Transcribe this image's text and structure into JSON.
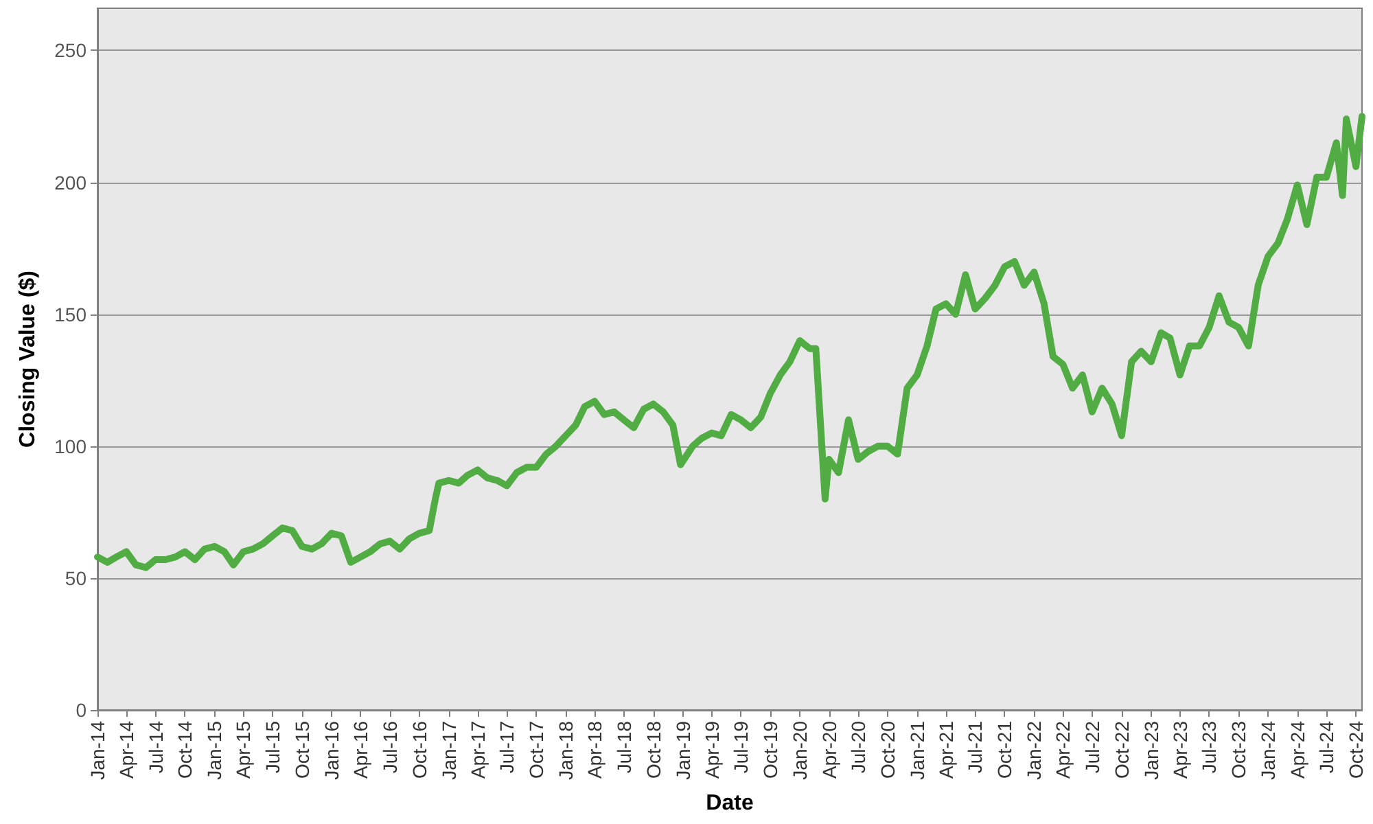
{
  "chart_data": {
    "type": "line",
    "xlabel": "Date",
    "ylabel": "Closing Value ($)",
    "x": [
      "2014-01",
      "2014-02",
      "2014-03",
      "2014-04",
      "2014-05",
      "2014-06",
      "2014-07",
      "2014-08",
      "2014-09",
      "2014-10",
      "2014-11",
      "2014-12",
      "2015-01",
      "2015-02",
      "2015-03",
      "2015-04",
      "2015-05",
      "2015-06",
      "2015-07",
      "2015-08",
      "2015-09",
      "2015-10",
      "2015-11",
      "2015-12",
      "2016-01",
      "2016-02",
      "2016-03",
      "2016-04",
      "2016-05",
      "2016-06",
      "2016-07",
      "2016-08",
      "2016-09",
      "2016-10",
      "2016-11",
      "2016-11-20",
      "2016-12",
      "2017-01",
      "2017-02",
      "2017-03",
      "2017-04",
      "2017-05",
      "2017-06",
      "2017-07",
      "2017-08",
      "2017-09",
      "2017-10",
      "2017-11",
      "2017-12",
      "2018-01",
      "2018-02",
      "2018-03",
      "2018-04",
      "2018-05",
      "2018-06",
      "2018-07",
      "2018-08",
      "2018-09",
      "2018-10",
      "2018-11",
      "2018-12",
      "2018-12-25",
      "2019-02",
      "2019-03",
      "2019-04",
      "2019-05",
      "2019-06",
      "2019-07",
      "2019-08",
      "2019-09",
      "2019-10",
      "2019-11",
      "2019-12",
      "2020-01",
      "2020-02",
      "2020-02-20",
      "2020-03-20",
      "2020-04",
      "2020-05",
      "2020-06",
      "2020-07",
      "2020-08",
      "2020-09",
      "2020-10",
      "2020-11",
      "2020-12",
      "2021-01",
      "2021-02",
      "2021-03",
      "2021-04",
      "2021-05",
      "2021-06",
      "2021-07",
      "2021-08",
      "2021-09",
      "2021-10",
      "2021-11",
      "2021-12",
      "2022-01",
      "2022-02",
      "2022-03",
      "2022-04",
      "2022-05",
      "2022-06",
      "2022-07",
      "2022-08",
      "2022-09",
      "2022-10",
      "2022-11",
      "2022-12",
      "2023-01",
      "2023-02",
      "2023-03",
      "2023-04",
      "2023-05",
      "2023-06",
      "2023-07",
      "2023-08",
      "2023-09",
      "2023-10",
      "2023-11",
      "2023-12",
      "2024-01",
      "2024-02",
      "2024-03",
      "2024-04",
      "2024-05",
      "2024-06",
      "2024-07",
      "2024-08",
      "2024-08-20",
      "2024-09",
      "2024-10",
      "2024-10-20"
    ],
    "series": [
      {
        "color": "#52ac44",
        "values": [
          58,
          56,
          58,
          60,
          55,
          54,
          57,
          57,
          58,
          60,
          57,
          61,
          62,
          60,
          55,
          60,
          61,
          63,
          66,
          69,
          68,
          62,
          61,
          63,
          67,
          66,
          56,
          58,
          60,
          63,
          64,
          61,
          65,
          67,
          68,
          80,
          86,
          87,
          86,
          89,
          91,
          88,
          87,
          85,
          90,
          92,
          92,
          97,
          100,
          104,
          108,
          115,
          117,
          112,
          113,
          110,
          107,
          114,
          116,
          113,
          108,
          93,
          100,
          103,
          105,
          104,
          112,
          110,
          107,
          111,
          120,
          127,
          132,
          140,
          137,
          137,
          80,
          95,
          90,
          110,
          95,
          98,
          100,
          100,
          97,
          122,
          127,
          138,
          152,
          154,
          150,
          165,
          152,
          156,
          161,
          168,
          170,
          161,
          166,
          154,
          134,
          131,
          122,
          127,
          113,
          122,
          116,
          104,
          132,
          136,
          132,
          143,
          141,
          127,
          138,
          138,
          145,
          157,
          147,
          145,
          138,
          161,
          172,
          177,
          186,
          199,
          184,
          202,
          202,
          215,
          195,
          224,
          206,
          225
        ]
      }
    ],
    "xlim": [
      "2014-01",
      "2024-10-20"
    ],
    "xticks": [
      {
        "value": "2014-01",
        "label": "Jan-14"
      },
      {
        "value": "2014-04",
        "label": "Apr-14"
      },
      {
        "value": "2014-07",
        "label": "Jul-14"
      },
      {
        "value": "2014-10",
        "label": "Oct-14"
      },
      {
        "value": "2015-01",
        "label": "Jan-15"
      },
      {
        "value": "2015-04",
        "label": "Apr-15"
      },
      {
        "value": "2015-07",
        "label": "Jul-15"
      },
      {
        "value": "2015-10",
        "label": "Oct-15"
      },
      {
        "value": "2016-01",
        "label": "Jan-16"
      },
      {
        "value": "2016-04",
        "label": "Apr-16"
      },
      {
        "value": "2016-07",
        "label": "Jul-16"
      },
      {
        "value": "2016-10",
        "label": "Oct-16"
      },
      {
        "value": "2017-01",
        "label": "Jan-17"
      },
      {
        "value": "2017-04",
        "label": "Apr-17"
      },
      {
        "value": "2017-07",
        "label": "Jul-17"
      },
      {
        "value": "2017-10",
        "label": "Oct-17"
      },
      {
        "value": "2018-01",
        "label": "Jan-18"
      },
      {
        "value": "2018-04",
        "label": "Apr-18"
      },
      {
        "value": "2018-07",
        "label": "Jul-18"
      },
      {
        "value": "2018-10",
        "label": "Oct-18"
      },
      {
        "value": "2019-01",
        "label": "Jan-19"
      },
      {
        "value": "2019-04",
        "label": "Apr-19"
      },
      {
        "value": "2019-07",
        "label": "Jul-19"
      },
      {
        "value": "2019-10",
        "label": "Oct-19"
      },
      {
        "value": "2020-01",
        "label": "Jan-20"
      },
      {
        "value": "2020-04",
        "label": "Apr-20"
      },
      {
        "value": "2020-07",
        "label": "Jul-20"
      },
      {
        "value": "2020-10",
        "label": "Oct-20"
      },
      {
        "value": "2021-01",
        "label": "Jan-21"
      },
      {
        "value": "2021-04",
        "label": "Apr-21"
      },
      {
        "value": "2021-07",
        "label": "Jul-21"
      },
      {
        "value": "2021-10",
        "label": "Oct-21"
      },
      {
        "value": "2022-01",
        "label": "Jan-22"
      },
      {
        "value": "2022-04",
        "label": "Apr-22"
      },
      {
        "value": "2022-07",
        "label": "Jul-22"
      },
      {
        "value": "2022-10",
        "label": "Oct-22"
      },
      {
        "value": "2023-01",
        "label": "Jan-23"
      },
      {
        "value": "2023-04",
        "label": "Apr-23"
      },
      {
        "value": "2023-07",
        "label": "Jul-23"
      },
      {
        "value": "2023-10",
        "label": "Oct-23"
      },
      {
        "value": "2024-01",
        "label": "Jan-24"
      },
      {
        "value": "2024-04",
        "label": "Apr-24"
      },
      {
        "value": "2024-07",
        "label": "Jul-24"
      },
      {
        "value": "2024-10",
        "label": "Oct-24"
      }
    ],
    "ylim": [
      0,
      266
    ],
    "yticks": [
      0,
      50,
      100,
      150,
      200,
      250
    ],
    "grid": "y",
    "marker": "none",
    "line_style": "solid"
  }
}
